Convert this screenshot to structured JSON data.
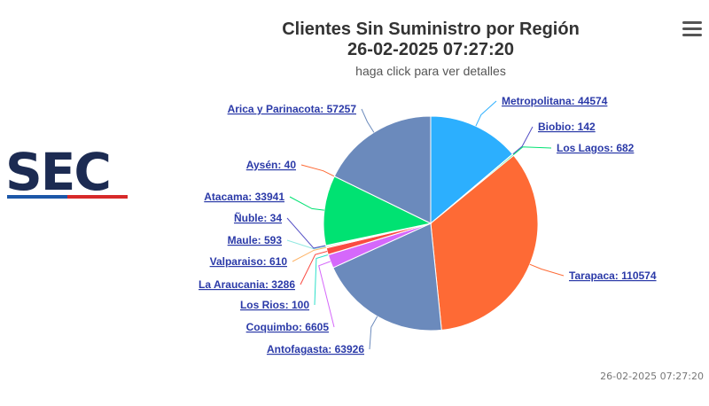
{
  "title_line1": "Clientes Sin Suministro por Región",
  "title_line2": "26-02-2025 07:27:20",
  "subtitle": "haga click para ver detalles",
  "footer_timestamp": "26-02-2025 07:27:20",
  "logo": {
    "text": "SEC",
    "color": "#1c2b52",
    "stripe_colors": [
      "#1c57a8",
      "#d72a2a"
    ]
  },
  "menu_icon": "hamburger-menu-icon",
  "chart_data": {
    "type": "pie",
    "title": "Clientes Sin Suministro por Región",
    "subtitle": "haga click para ver detalles",
    "slices": [
      {
        "name": "Metropolitana",
        "value": 44574,
        "label": "Metropolitana: 44574",
        "color": "#2caffe"
      },
      {
        "name": "Biobio",
        "value": 142,
        "label": "Biobio: 142",
        "color": "#544fc5"
      },
      {
        "name": "Los Lagos",
        "value": 682,
        "label": "Los Lagos: 682",
        "color": "#00e272"
      },
      {
        "name": "Tarapaca",
        "value": 110574,
        "label": "Tarapaca: 110574",
        "color": "#fe6a35"
      },
      {
        "name": "Antofagasta",
        "value": 63926,
        "label": "Antofagasta: 63926",
        "color": "#6b8abc"
      },
      {
        "name": "Coquimbo",
        "value": 6605,
        "label": "Coquimbo: 6605",
        "color": "#d568fb"
      },
      {
        "name": "Los Rios",
        "value": 100,
        "label": "Los Rios: 100",
        "color": "#2ee0ca"
      },
      {
        "name": "La Araucania",
        "value": 3286,
        "label": "La Araucania: 3286",
        "color": "#fa4b42"
      },
      {
        "name": "Valparaiso",
        "value": 610,
        "label": "Valparaiso: 610",
        "color": "#feb56a"
      },
      {
        "name": "Maule",
        "value": 593,
        "label": "Maule: 593",
        "color": "#91e8e1"
      },
      {
        "name": "Ñuble",
        "value": 34,
        "label": "Ñuble: 34",
        "color": "#544fc5"
      },
      {
        "name": "Atacama",
        "value": 33941,
        "label": "Atacama: 33941",
        "color": "#00e272"
      },
      {
        "name": "Aysén",
        "value": 40,
        "label": "Aysén: 40",
        "color": "#fe6a35"
      },
      {
        "name": "Arica y Parinacota",
        "value": 57257,
        "label": "Arica y Parinacota: 57257",
        "color": "#6b8abc"
      }
    ]
  }
}
